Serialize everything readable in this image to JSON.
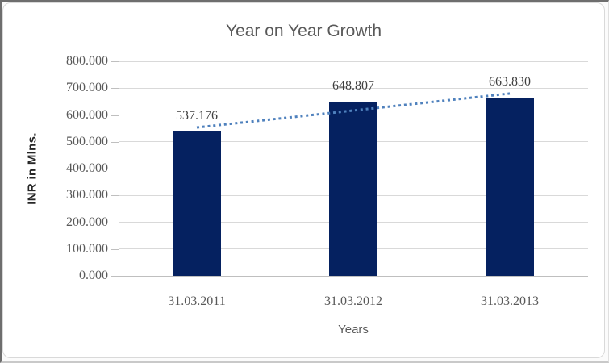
{
  "chart_data": {
    "type": "bar",
    "title": "Year on Year Growth",
    "xlabel": "Years",
    "ylabel": "INR in Mlns.",
    "categories": [
      "31.03.2011",
      "31.03.2012",
      "31.03.2013"
    ],
    "values": [
      537.176,
      648.807,
      663.83
    ],
    "value_labels": [
      "537.176",
      "648.807",
      "663.830"
    ],
    "ytick_labels": [
      "0.000",
      "100.000",
      "200.000",
      "300.000",
      "400.000",
      "500.000",
      "600.000",
      "700.000",
      "800.000"
    ],
    "ytick_step": 100,
    "ylim": [
      0,
      800
    ],
    "grid": true,
    "legend": false,
    "trendline": {
      "type": "linear",
      "style": "dotted",
      "color": "#4f81bd"
    },
    "colors": {
      "bar": "#052160",
      "title_text": "#595959",
      "tick_text": "#595959",
      "data_label_text": "#3f3f3f",
      "axis_title_text": "#262626",
      "gridline": "#d9d9d9",
      "axis_line": "#bfbfbf"
    }
  }
}
